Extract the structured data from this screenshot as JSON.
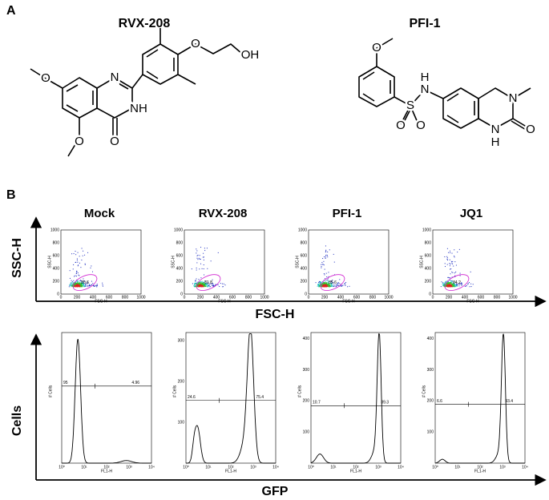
{
  "panel_a": {
    "label": "A",
    "rvx": {
      "name": "RVX-208",
      "atoms": [
        "O",
        "N",
        "NH",
        "O",
        "O",
        "O",
        "OH"
      ]
    },
    "pfi": {
      "name": "PFI-1",
      "atoms": [
        "O",
        "S",
        "O",
        "O",
        "N",
        "H",
        "N",
        "N",
        "H",
        "O"
      ]
    }
  },
  "panel_b": {
    "label": "B",
    "columns": [
      "Mock",
      "RVX-208",
      "PFI-1",
      "JQ1"
    ],
    "scatter": {
      "y_label": "SSC-H",
      "x_label": "FSC-H",
      "plot_y_label": "SSC-H",
      "plot_x_label": "FSC-H",
      "ticks": [
        "0",
        "200",
        "400",
        "600",
        "800",
        "1000"
      ],
      "gates": [
        "80.6",
        "81.8",
        "85.6",
        "84.2"
      ]
    },
    "histogram": {
      "y_label": "Cells",
      "x_label": "GFP",
      "plot_y_label": "# Cells",
      "plot_x_label": "FL1-H",
      "x_ticks": [
        "10⁰",
        "10¹",
        "10²",
        "10³",
        "10⁴"
      ],
      "panels": [
        {
          "left": "95",
          "right": "4.96"
        },
        {
          "y_ticks": [
            "100",
            "200",
            "300"
          ],
          "left": "24.6",
          "right": "75.4"
        },
        {
          "y_ticks": [
            "100",
            "200",
            "300",
            "400"
          ],
          "left": "10.7",
          "right": "89.3"
        },
        {
          "y_ticks": [
            "100",
            "200",
            "300",
            "400"
          ],
          "left": "6.6",
          "right": "93.4"
        }
      ]
    }
  }
}
